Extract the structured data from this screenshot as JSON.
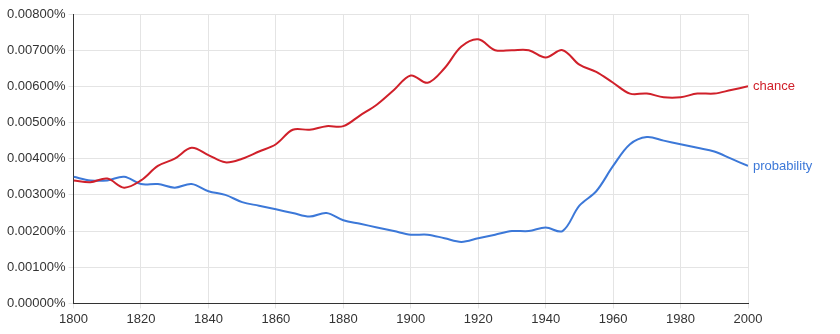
{
  "chart_data": {
    "type": "line",
    "x": [
      1800,
      1805,
      1810,
      1815,
      1820,
      1825,
      1830,
      1835,
      1840,
      1845,
      1850,
      1855,
      1860,
      1865,
      1870,
      1875,
      1880,
      1885,
      1890,
      1895,
      1900,
      1905,
      1910,
      1915,
      1920,
      1925,
      1930,
      1935,
      1940,
      1945,
      1950,
      1955,
      1960,
      1965,
      1970,
      1975,
      1980,
      1985,
      1990,
      1995,
      2000
    ],
    "series": [
      {
        "name": "chance",
        "color": "#d0202a",
        "values": [
          0.0034,
          0.00335,
          0.00345,
          0.0032,
          0.0034,
          0.0038,
          0.004,
          0.0043,
          0.0041,
          0.0039,
          0.004,
          0.0042,
          0.0044,
          0.0048,
          0.0048,
          0.0049,
          0.0049,
          0.0052,
          0.0055,
          0.0059,
          0.0063,
          0.0061,
          0.0065,
          0.0071,
          0.0073,
          0.007,
          0.007,
          0.007,
          0.0068,
          0.007,
          0.0066,
          0.0064,
          0.0061,
          0.0058,
          0.0058,
          0.0057,
          0.0057,
          0.0058,
          0.0058,
          0.0059,
          0.006
        ]
      },
      {
        "name": "probability",
        "color": "#3c78d8",
        "values": [
          0.0035,
          0.0034,
          0.0034,
          0.0035,
          0.0033,
          0.0033,
          0.0032,
          0.0033,
          0.0031,
          0.003,
          0.0028,
          0.0027,
          0.0026,
          0.0025,
          0.0024,
          0.0025,
          0.0023,
          0.0022,
          0.0021,
          0.002,
          0.0019,
          0.0019,
          0.0018,
          0.0017,
          0.0018,
          0.0019,
          0.002,
          0.002,
          0.0021,
          0.002,
          0.0027,
          0.0031,
          0.0038,
          0.0044,
          0.0046,
          0.0045,
          0.0044,
          0.0043,
          0.0042,
          0.004,
          0.0038
        ]
      }
    ],
    "xlim": [
      1800,
      2000
    ],
    "xticks": [
      1800,
      1820,
      1840,
      1860,
      1880,
      1900,
      1920,
      1940,
      1960,
      1980,
      2000
    ],
    "ylim": [
      0,
      0.008
    ],
    "yticks": [
      {
        "value": 0,
        "label": "0.00000%"
      },
      {
        "value": 0.001,
        "label": "0.00100%"
      },
      {
        "value": 0.002,
        "label": "0.00200%"
      },
      {
        "value": 0.003,
        "label": "0.00300%"
      },
      {
        "value": 0.004,
        "label": "0.00400%"
      },
      {
        "value": 0.005,
        "label": "0.00500%"
      },
      {
        "value": 0.006,
        "label": "0.00600%"
      },
      {
        "value": 0.007,
        "label": "0.00700%"
      },
      {
        "value": 0.008,
        "label": "0.00800%"
      }
    ],
    "grid": true
  }
}
